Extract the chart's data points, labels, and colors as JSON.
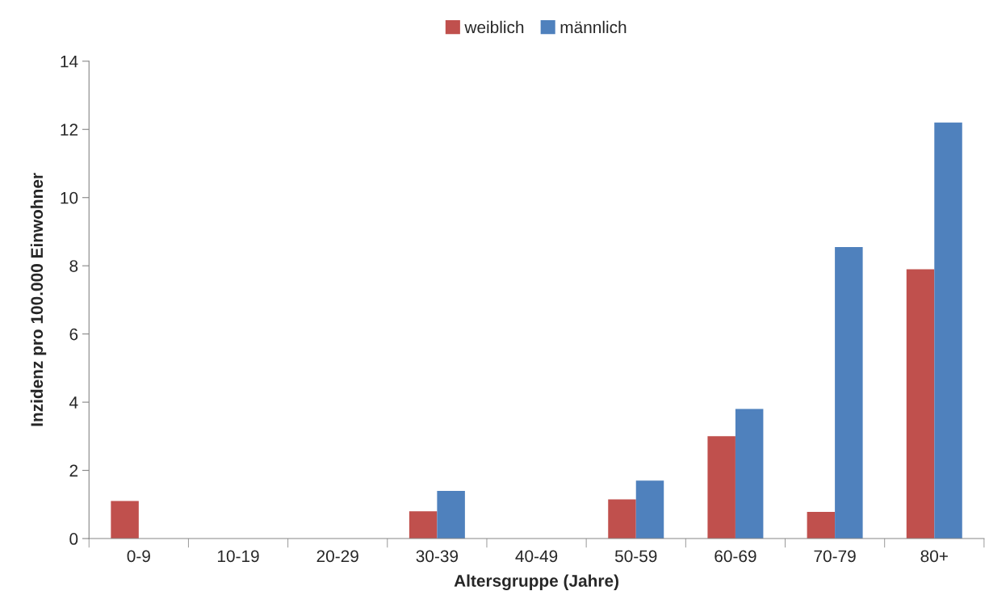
{
  "chart_data": {
    "type": "bar",
    "xlabel": "Altersgruppe (Jahre)",
    "ylabel": "Inzidenz pro 100.000 Einwohner",
    "categories": [
      "0-9",
      "10-19",
      "20-29",
      "30-39",
      "40-49",
      "50-59",
      "60-69",
      "70-79",
      "80+"
    ],
    "series": [
      {
        "name": "weiblich",
        "color": "#c0504d",
        "values": [
          1.1,
          null,
          null,
          0.8,
          null,
          1.15,
          3.0,
          0.78,
          7.9
        ]
      },
      {
        "name": "männlich",
        "color": "#4f81bd",
        "values": [
          null,
          null,
          null,
          1.4,
          null,
          1.7,
          3.8,
          8.55,
          12.2
        ]
      }
    ],
    "ylim": [
      0,
      14
    ],
    "yticks": [
      0,
      2,
      4,
      6,
      8,
      10,
      12,
      14
    ],
    "grid": false,
    "legend": "top"
  }
}
